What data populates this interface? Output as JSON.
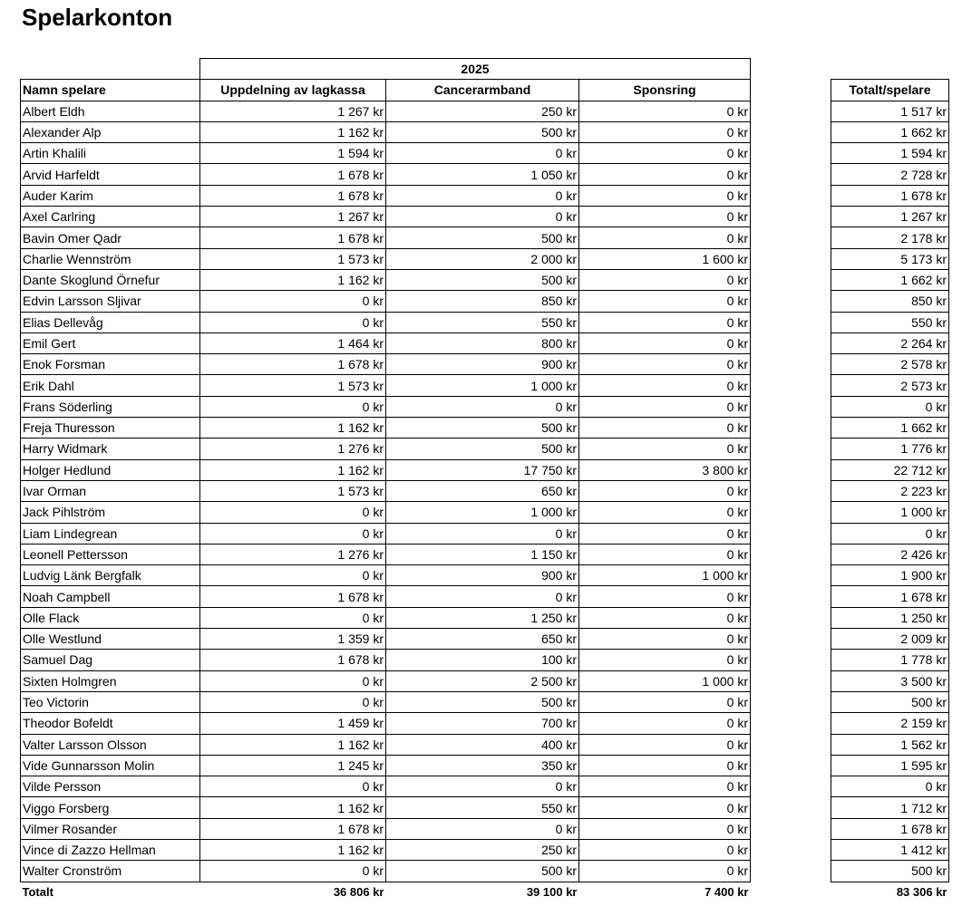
{
  "title": "Spelarkonton",
  "table": {
    "group_header": "2025",
    "columns": [
      "Namn spelare",
      "Uppdelning av lagkassa",
      "Cancerarmband",
      "Sponsring",
      "Totalt/spelare"
    ],
    "rows": [
      [
        "Albert Eldh",
        "1 267 kr",
        "250 kr",
        "0 kr",
        "1 517 kr"
      ],
      [
        "Alexander Alp",
        "1 162 kr",
        "500 kr",
        "0 kr",
        "1 662 kr"
      ],
      [
        "Artin Khalili",
        "1 594 kr",
        "0 kr",
        "0 kr",
        "1 594 kr"
      ],
      [
        "Arvid Harfeldt",
        "1 678 kr",
        "1 050 kr",
        "0 kr",
        "2 728 kr"
      ],
      [
        "Auder Karim",
        "1 678 kr",
        "0 kr",
        "0 kr",
        "1 678 kr"
      ],
      [
        "Axel Carlring",
        "1 267 kr",
        "0 kr",
        "0 kr",
        "1 267 kr"
      ],
      [
        "Bavin Omer Qadr",
        "1 678 kr",
        "500 kr",
        "0 kr",
        "2 178 kr"
      ],
      [
        "Charlie Wennström",
        "1 573 kr",
        "2 000 kr",
        "1 600 kr",
        "5 173 kr"
      ],
      [
        "Dante Skoglund Örnefur",
        "1 162 kr",
        "500 kr",
        "0 kr",
        "1 662 kr"
      ],
      [
        "Edvin Larsson Sljivar",
        "0 kr",
        "850 kr",
        "0 kr",
        "850 kr"
      ],
      [
        "Elias Dellevåg",
        "0 kr",
        "550 kr",
        "0 kr",
        "550 kr"
      ],
      [
        "Emil Gert",
        "1 464 kr",
        "800 kr",
        "0 kr",
        "2 264 kr"
      ],
      [
        "Enok Forsman",
        "1 678 kr",
        "900 kr",
        "0 kr",
        "2 578 kr"
      ],
      [
        "Erik Dahl",
        "1 573 kr",
        "1 000 kr",
        "0 kr",
        "2 573 kr"
      ],
      [
        "Frans Söderling",
        "0 kr",
        "0 kr",
        "0 kr",
        "0 kr"
      ],
      [
        "Freja Thuresson",
        "1 162 kr",
        "500 kr",
        "0 kr",
        "1 662 kr"
      ],
      [
        "Harry Widmark",
        "1 276 kr",
        "500 kr",
        "0 kr",
        "1 776 kr"
      ],
      [
        "Holger Hedlund",
        "1 162 kr",
        "17 750 kr",
        "3 800 kr",
        "22 712 kr"
      ],
      [
        "Ivar Orman",
        "1 573 kr",
        "650 kr",
        "0 kr",
        "2 223 kr"
      ],
      [
        "Jack Pihlström",
        "0 kr",
        "1 000 kr",
        "0 kr",
        "1 000 kr"
      ],
      [
        "Liam Lindegrean",
        "0 kr",
        "0 kr",
        "0 kr",
        "0 kr"
      ],
      [
        "Leonell Pettersson",
        "1 276 kr",
        "1 150 kr",
        "0 kr",
        "2 426 kr"
      ],
      [
        "Ludvig Länk Bergfalk",
        "0 kr",
        "900 kr",
        "1 000 kr",
        "1 900 kr"
      ],
      [
        "Noah Campbell",
        "1 678 kr",
        "0 kr",
        "0 kr",
        "1 678 kr"
      ],
      [
        "Olle Flack",
        "0 kr",
        "1 250 kr",
        "0 kr",
        "1 250 kr"
      ],
      [
        "Olle Westlund",
        "1 359 kr",
        "650 kr",
        "0 kr",
        "2 009 kr"
      ],
      [
        "Samuel Dag",
        "1 678 kr",
        "100 kr",
        "0 kr",
        "1 778 kr"
      ],
      [
        "Sixten Holmgren",
        "0 kr",
        "2 500 kr",
        "1 000 kr",
        "3 500 kr"
      ],
      [
        "Teo Victorin",
        "0 kr",
        "500 kr",
        "0 kr",
        "500 kr"
      ],
      [
        "Theodor Bofeldt",
        "1 459 kr",
        "700 kr",
        "0 kr",
        "2 159 kr"
      ],
      [
        "Valter Larsson Olsson",
        "1 162 kr",
        "400 kr",
        "0 kr",
        "1 562 kr"
      ],
      [
        "Vide Gunnarsson Molin",
        "1 245 kr",
        "350 kr",
        "0 kr",
        "1 595 kr"
      ],
      [
        "Vilde Persson",
        "0 kr",
        "0 kr",
        "0 kr",
        "0 kr"
      ],
      [
        "Viggo Forsberg",
        "1 162 kr",
        "550 kr",
        "0 kr",
        "1 712 kr"
      ],
      [
        "Vilmer Rosander",
        "1 678 kr",
        "0 kr",
        "0 kr",
        "1 678 kr"
      ],
      [
        "Vince di Zazzo Hellman",
        "1 162 kr",
        "250 kr",
        "0 kr",
        "1 412 kr"
      ],
      [
        "Walter Cronström",
        "0 kr",
        "500 kr",
        "0 kr",
        "500 kr"
      ]
    ],
    "total_row": [
      "Totalt",
      "36 806 kr",
      "39 100 kr",
      "7 400 kr",
      "83 306 kr"
    ]
  }
}
